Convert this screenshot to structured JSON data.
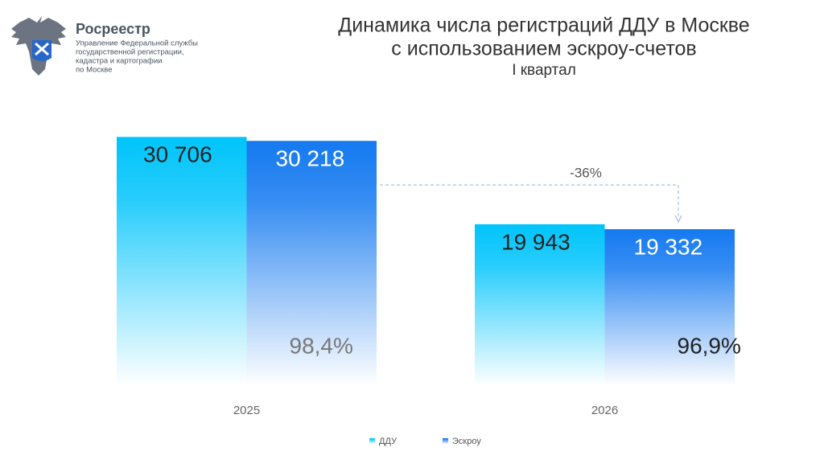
{
  "header": {
    "brand": "Росреестр",
    "org_lines": [
      "Управление Федеральной службы",
      "государственной регистрации,",
      "кадастра и картографии",
      "по Москве"
    ]
  },
  "chart_data": {
    "type": "bar",
    "title_lines": [
      "Динамика числа регистраций ДДУ в Москве",
      "с использованием эскроу-счетов"
    ],
    "subtitle": "I квартал",
    "categories": [
      "2025",
      "2026"
    ],
    "series": [
      {
        "name": "ДДУ",
        "color": "#00c4fb",
        "values": [
          30706,
          19943
        ],
        "value_labels": [
          "30 706",
          "19 943"
        ]
      },
      {
        "name": "Эскроу",
        "color": "#1479f0",
        "values": [
          30218,
          19332
        ],
        "value_labels": [
          "30 218",
          "19 332"
        ]
      }
    ],
    "share_labels": [
      "98,4%",
      "96,9%"
    ],
    "annotations": [
      "-36%"
    ],
    "ylim": [
      0,
      35000
    ],
    "legend": "bottom"
  }
}
